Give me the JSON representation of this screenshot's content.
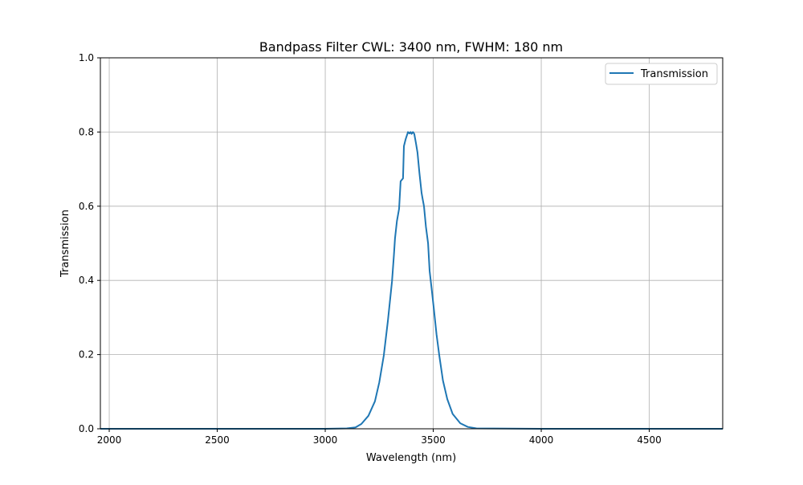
{
  "chart_data": {
    "type": "line",
    "title": "Bandpass Filter CWL: 3400 nm, FWHM: 180 nm",
    "xlabel": "Wavelength (nm)",
    "ylabel": "Transmission",
    "xlim": [
      1959,
      4840
    ],
    "ylim": [
      0,
      1.0
    ],
    "xticks": [
      2000,
      2500,
      3000,
      3500,
      4000,
      4500
    ],
    "yticks": [
      0.0,
      0.2,
      0.4,
      0.6,
      0.8,
      1.0
    ],
    "ytick_labels": [
      "0.0",
      "0.2",
      "0.4",
      "0.6",
      "0.8",
      "1.0"
    ],
    "grid": true,
    "legend": "top-right",
    "series": [
      {
        "name": "Transmission",
        "color": "#1f77b4",
        "x": [
          1959,
          2500,
          3000,
          3100,
          3140,
          3167,
          3200,
          3230,
          3250,
          3271,
          3290,
          3309,
          3318,
          3323,
          3332,
          3342,
          3349,
          3360,
          3364,
          3372,
          3383,
          3390,
          3395,
          3400,
          3406,
          3412,
          3420,
          3427,
          3436,
          3446,
          3450,
          3457,
          3466,
          3476,
          3483,
          3492,
          3502,
          3515,
          3528,
          3545,
          3565,
          3590,
          3625,
          3660,
          3700,
          4000,
          4500,
          4840
        ],
        "y": [
          0,
          0,
          0,
          0.001,
          0.004,
          0.013,
          0.035,
          0.074,
          0.125,
          0.197,
          0.29,
          0.398,
          0.47,
          0.513,
          0.56,
          0.593,
          0.667,
          0.675,
          0.762,
          0.78,
          0.8,
          0.796,
          0.8,
          0.795,
          0.8,
          0.795,
          0.77,
          0.745,
          0.69,
          0.636,
          0.622,
          0.6,
          0.545,
          0.5,
          0.426,
          0.38,
          0.327,
          0.255,
          0.197,
          0.13,
          0.08,
          0.04,
          0.015,
          0.005,
          0.001,
          0,
          0,
          0
        ]
      }
    ]
  }
}
